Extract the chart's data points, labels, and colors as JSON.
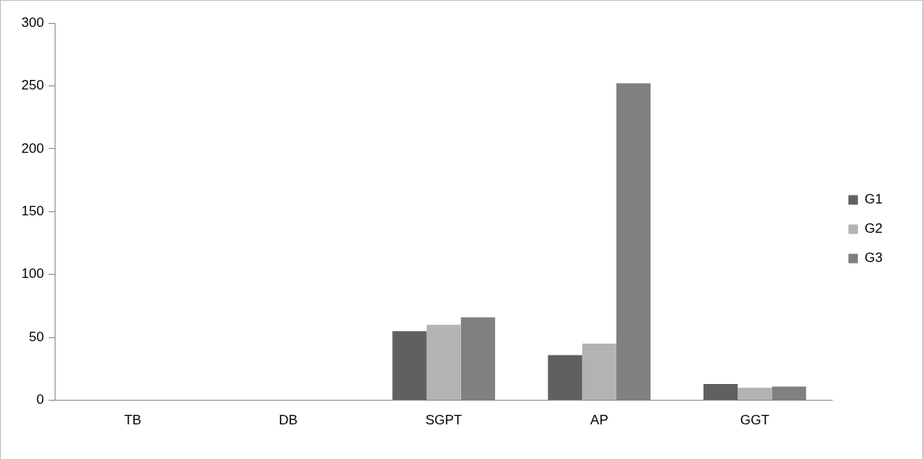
{
  "chart_data": {
    "type": "bar",
    "categories": [
      "TB",
      "DB",
      "SGPT",
      "AP",
      "GGT"
    ],
    "series": [
      {
        "name": "G1",
        "color": "#606060",
        "values": [
          null,
          null,
          55,
          36,
          13
        ]
      },
      {
        "name": "G2",
        "color": "#b3b3b3",
        "values": [
          null,
          null,
          60,
          45,
          10
        ]
      },
      {
        "name": "G3",
        "color": "#808080",
        "values": [
          null,
          null,
          66,
          252,
          11
        ]
      }
    ],
    "ylim": [
      0,
      300
    ],
    "yticks": [
      0,
      50,
      100,
      150,
      200,
      250,
      300
    ],
    "grid": false,
    "legend": "right"
  }
}
